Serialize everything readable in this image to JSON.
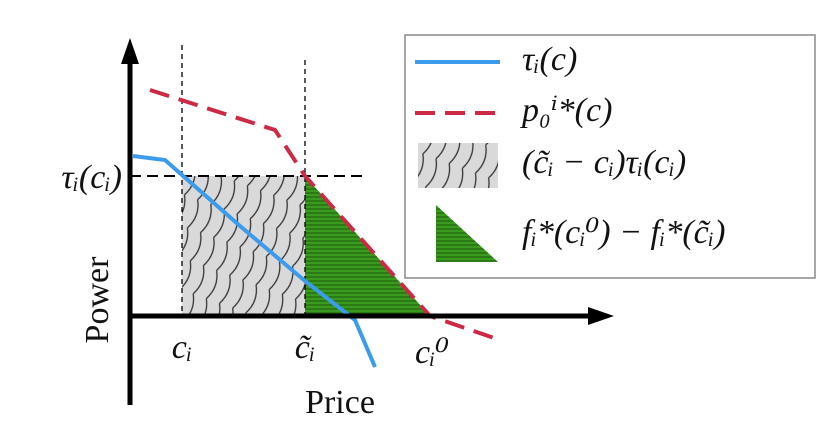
{
  "axes": {
    "x_label": "Price",
    "y_label": "Power"
  },
  "annotations": {
    "y_level": "τᵢ(cᵢ)",
    "x_ticks": [
      "cᵢ",
      "c̃ᵢ",
      "cᵢ⁰"
    ]
  },
  "legend": [
    "τᵢ(c)",
    "p₀ⁱ*(c)",
    "(c̃ᵢ − cᵢ)τᵢ(cᵢ)",
    "fᵢ*(cᵢ⁰) − fᵢ*(c̃ᵢ)"
  ]
}
